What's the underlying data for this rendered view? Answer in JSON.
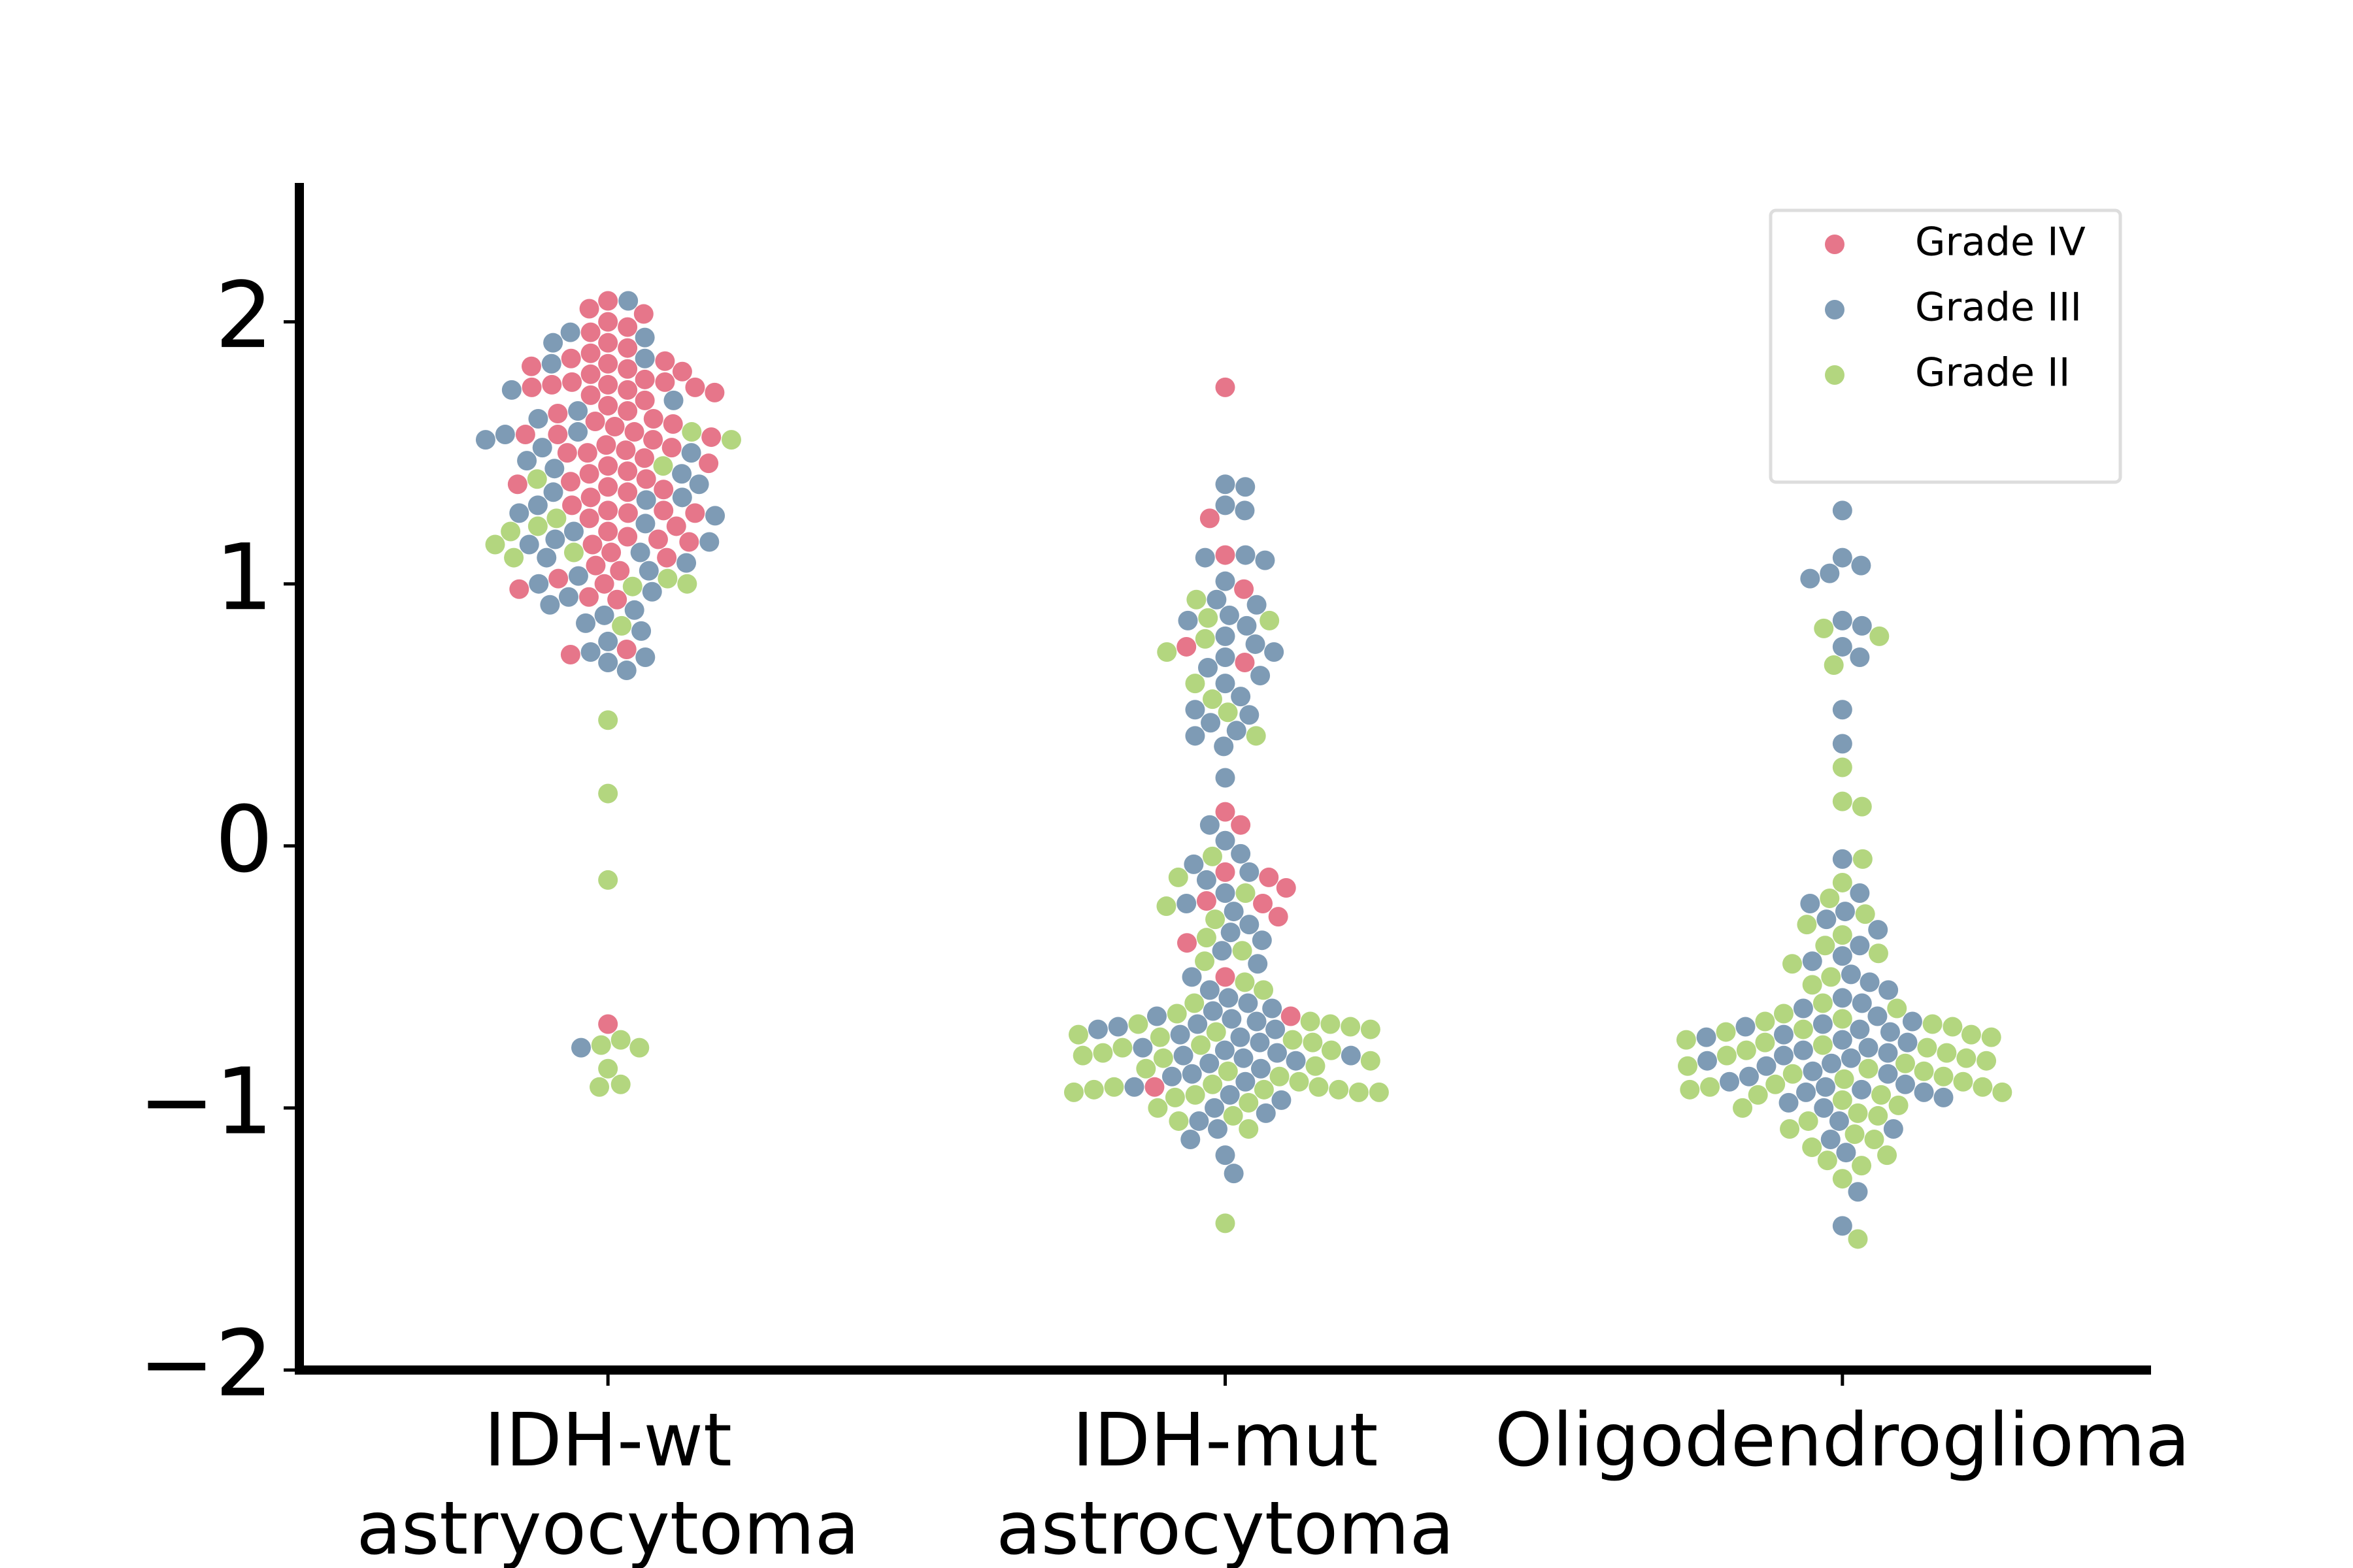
{
  "chart_data": {
    "type": "swarm",
    "categories": [
      [
        "IDH-wt",
        "astryocytoma"
      ],
      [
        "IDH-mut",
        "astrocytoma"
      ],
      [
        "Oligodendroglioma"
      ]
    ],
    "ylim": [
      -2,
      2.53
    ],
    "yticks": [
      {
        "value": -2,
        "label": "−2"
      },
      {
        "value": -1,
        "label": "−1"
      },
      0,
      1,
      2
    ],
    "legend": "upper right",
    "series": [
      {
        "name": "Grade IV",
        "color": "#e6768a",
        "values": [
          [
            1.77,
            1.76,
            1.75,
            1.74,
            1.73,
            1.77,
            1.76,
            1.75,
            1.84,
            1.82,
            1.81,
            1.8,
            1.85,
            1.83,
            1.86,
            1.88,
            1.9,
            1.92,
            1.96,
            2.0,
            2.05,
            2.03,
            2.08,
            1.98,
            1.7,
            1.68,
            1.65,
            1.63,
            1.6,
            1.58,
            1.56,
            1.55,
            1.53,
            1.5,
            1.48,
            1.46,
            1.45,
            1.43,
            1.4,
            1.38,
            1.37,
            1.35,
            1.33,
            1.3,
            1.28,
            1.27,
            1.25,
            1.22,
            1.2,
            1.18,
            1.16,
            1.15,
            1.52,
            1.57,
            1.62,
            1.66,
            1.72,
            1.78,
            1.5,
            1.42,
            1.36,
            1.27,
            1.17,
            1.12,
            1.1,
            1.07,
            1.05,
            1.02,
            1.0,
            0.98,
            0.95,
            0.94,
            0.75,
            0.73,
            -0.68,
            1.61,
            1.57,
            1.51,
            1.39,
            1.28
          ],
          [
            1.75,
            1.25,
            1.11,
            0.98,
            0.76,
            0.7,
            0.13,
            0.08,
            -0.1,
            -0.12,
            -0.16,
            -0.21,
            -0.22,
            -0.27,
            -0.37,
            -0.5,
            -0.65,
            -0.92
          ],
          []
        ]
      },
      {
        "name": "Grade III",
        "color": "#7e9bb5",
        "values": [
          [
            2.08,
            1.96,
            1.94,
            1.92,
            1.86,
            1.84,
            1.74,
            1.7,
            1.66,
            1.63,
            1.58,
            1.55,
            1.52,
            1.5,
            1.47,
            1.44,
            1.42,
            1.38,
            1.35,
            1.32,
            1.3,
            1.27,
            1.23,
            1.2,
            1.17,
            1.15,
            1.16,
            1.12,
            1.1,
            1.08,
            1.05,
            1.03,
            1.0,
            0.97,
            0.95,
            0.92,
            0.9,
            0.88,
            0.85,
            0.82,
            0.78,
            0.74,
            0.72,
            0.7,
            0.67,
            1.57,
            1.33,
            1.26,
            -0.77
          ],
          [
            1.38,
            1.37,
            1.3,
            1.28,
            1.11,
            1.1,
            1.09,
            1.01,
            0.94,
            0.92,
            0.88,
            0.86,
            0.84,
            0.8,
            0.77,
            0.74,
            0.72,
            0.68,
            0.65,
            0.62,
            0.57,
            0.52,
            0.5,
            0.47,
            0.44,
            0.42,
            0.38,
            0.26,
            0.08,
            0.02,
            -0.03,
            -0.07,
            -0.1,
            -0.13,
            -0.18,
            -0.22,
            -0.25,
            -0.3,
            -0.33,
            -0.36,
            -0.4,
            -0.45,
            -0.5,
            -0.55,
            -0.58,
            -0.6,
            -0.63,
            -0.65,
            -0.66,
            -0.67,
            -0.68,
            -0.7,
            -0.72,
            -0.73,
            -0.75,
            -0.77,
            -0.78,
            -0.8,
            -0.8,
            -0.81,
            -0.82,
            -0.85,
            -0.88,
            -0.9,
            -0.92,
            -0.95,
            -0.97,
            -1.0,
            -1.02,
            -1.05,
            -1.08,
            -1.12,
            -1.18,
            -1.25,
            -0.62,
            -0.7,
            -0.79,
            -0.87,
            -0.69,
            -0.83
          ],
          [
            1.53,
            1.28,
            1.1,
            1.07,
            1.04,
            1.02,
            0.86,
            0.84,
            0.76,
            0.72,
            0.52,
            0.39,
            -0.05,
            -0.18,
            -0.22,
            -0.25,
            -0.28,
            -0.32,
            -0.38,
            -0.42,
            -0.44,
            -0.49,
            -0.52,
            -0.55,
            -0.58,
            -0.62,
            -0.65,
            -0.67,
            -0.68,
            -0.7,
            -0.72,
            -0.73,
            -0.75,
            -0.77,
            -0.78,
            -0.8,
            -0.82,
            -0.84,
            -0.86,
            -0.88,
            -0.9,
            -0.92,
            -0.93,
            -0.94,
            -0.96,
            -0.98,
            -1.0,
            -1.05,
            -1.08,
            -1.12,
            -1.17,
            -1.32,
            -1.45,
            -0.6,
            -0.69,
            -0.71,
            -0.74,
            -0.79,
            -0.81,
            -0.83,
            -0.87,
            -0.91,
            -0.94
          ]
        ]
      },
      {
        "name": "Grade II",
        "color": "#b3d67f",
        "values": [
          [
            1.58,
            1.55,
            1.45,
            1.4,
            1.25,
            1.22,
            1.2,
            1.15,
            1.12,
            1.1,
            1.02,
            1.0,
            0.99,
            0.84,
            0.48,
            0.2,
            -0.13,
            -0.74,
            -0.77,
            -0.85,
            -0.91,
            -0.92,
            -0.76
          ],
          [
            0.94,
            0.87,
            0.86,
            0.79,
            0.74,
            0.62,
            0.56,
            0.51,
            0.42,
            -0.04,
            -0.12,
            -0.18,
            -0.23,
            -0.28,
            -0.35,
            -0.4,
            -0.44,
            -0.52,
            -0.55,
            -0.6,
            -0.64,
            -0.67,
            -0.68,
            -0.68,
            -0.7,
            -0.72,
            -0.75,
            -0.77,
            -0.78,
            -0.8,
            -0.82,
            -0.84,
            -0.86,
            -0.88,
            -0.9,
            -0.92,
            -0.93,
            -0.93,
            -0.94,
            -0.94,
            -0.94,
            -0.95,
            -0.96,
            -0.98,
            -1.0,
            -1.03,
            -1.05,
            -1.08,
            -1.44,
            -0.69,
            -0.71,
            -0.74,
            -0.79,
            -0.81,
            -0.85,
            -0.91,
            -0.92,
            -0.93,
            -0.76,
            -0.73
          ],
          [
            0.83,
            0.8,
            0.69,
            0.3,
            0.17,
            0.15,
            -0.05,
            -0.14,
            -0.2,
            -0.26,
            -0.3,
            -0.34,
            -0.38,
            -0.41,
            -0.45,
            -0.5,
            -0.53,
            -0.6,
            -0.62,
            -0.64,
            -0.67,
            -0.68,
            -0.7,
            -0.72,
            -0.73,
            -0.75,
            -0.76,
            -0.78,
            -0.79,
            -0.8,
            -0.81,
            -0.83,
            -0.85,
            -0.86,
            -0.88,
            -0.9,
            -0.91,
            -0.92,
            -0.93,
            -0.94,
            -0.95,
            -0.97,
            -0.99,
            -1.02,
            -1.05,
            -1.08,
            -1.1,
            -1.12,
            -1.15,
            -1.18,
            -1.2,
            -1.22,
            -1.27,
            -1.5,
            -0.66,
            -0.69,
            -0.71,
            -0.74,
            -0.77,
            -0.82,
            -0.84,
            -0.87,
            -0.89,
            -0.92,
            -0.95,
            -1.0,
            -1.03
          ]
        ]
      }
    ]
  }
}
